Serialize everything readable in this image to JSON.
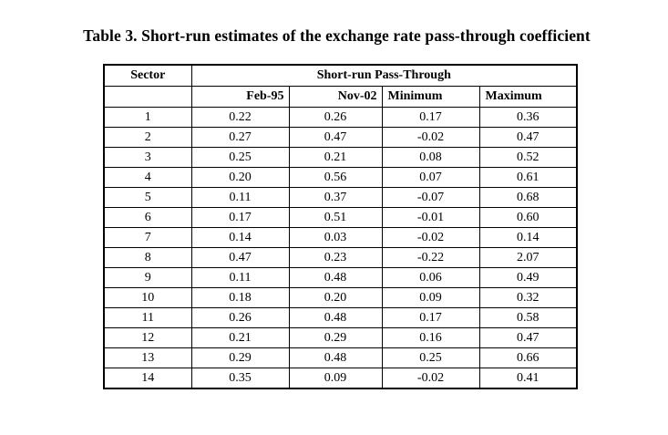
{
  "page": {
    "title": "Table 3. Short-run estimates of the exchange rate pass-through coefficient"
  },
  "table": {
    "corner_header": "Sector",
    "group_header": "Short-run Pass-Through",
    "sub_headers": [
      "Feb-95",
      "Nov-02",
      "Minimum",
      "Maximum"
    ],
    "rows": [
      [
        "1",
        "0.22",
        "0.26",
        "0.17",
        "0.36"
      ],
      [
        "2",
        "0.27",
        "0.47",
        "-0.02",
        "0.47"
      ],
      [
        "3",
        "0.25",
        "0.21",
        "0.08",
        "0.52"
      ],
      [
        "4",
        "0.20",
        "0.56",
        "0.07",
        "0.61"
      ],
      [
        "5",
        "0.11",
        "0.37",
        "-0.07",
        "0.68"
      ],
      [
        "6",
        "0.17",
        "0.51",
        "-0.01",
        "0.60"
      ],
      [
        "7",
        "0.14",
        "0.03",
        "-0.02",
        "0.14"
      ],
      [
        "8",
        "0.47",
        "0.23",
        "-0.22",
        "2.07"
      ],
      [
        "9",
        "0.11",
        "0.48",
        "0.06",
        "0.49"
      ],
      [
        "10",
        "0.18",
        "0.20",
        "0.09",
        "0.32"
      ],
      [
        "11",
        "0.26",
        "0.48",
        "0.17",
        "0.58"
      ],
      [
        "12",
        "0.21",
        "0.29",
        "0.16",
        "0.47"
      ],
      [
        "13",
        "0.29",
        "0.48",
        "0.25",
        "0.66"
      ],
      [
        "14",
        "0.35",
        "0.09",
        "-0.02",
        "0.41"
      ]
    ]
  },
  "colors": {
    "text": "#000000",
    "border": "#000000",
    "background": "#ffffff"
  },
  "chart_data": {
    "type": "table",
    "title": "Table 3. Short-run estimates of the exchange rate pass-through coefficient",
    "row_label": "Sector",
    "group_header": "Short-run Pass-Through",
    "columns": [
      "Feb-95",
      "Nov-02",
      "Minimum",
      "Maximum"
    ],
    "sectors": [
      1,
      2,
      3,
      4,
      5,
      6,
      7,
      8,
      9,
      10,
      11,
      12,
      13,
      14
    ],
    "series": [
      {
        "name": "Feb-95",
        "values": [
          0.22,
          0.27,
          0.25,
          0.2,
          0.11,
          0.17,
          0.14,
          0.47,
          0.11,
          0.18,
          0.26,
          0.21,
          0.29,
          0.35
        ]
      },
      {
        "name": "Nov-02",
        "values": [
          0.26,
          0.47,
          0.21,
          0.56,
          0.37,
          0.51,
          0.03,
          0.23,
          0.48,
          0.2,
          0.48,
          0.29,
          0.48,
          0.09
        ]
      },
      {
        "name": "Minimum",
        "values": [
          0.17,
          -0.02,
          0.08,
          0.07,
          -0.07,
          -0.01,
          -0.02,
          -0.22,
          0.06,
          0.09,
          0.17,
          0.16,
          0.25,
          -0.02
        ]
      },
      {
        "name": "Maximum",
        "values": [
          0.36,
          0.47,
          0.52,
          0.61,
          0.68,
          0.6,
          0.14,
          2.07,
          0.49,
          0.32,
          0.58,
          0.47,
          0.66,
          0.41
        ]
      }
    ]
  }
}
